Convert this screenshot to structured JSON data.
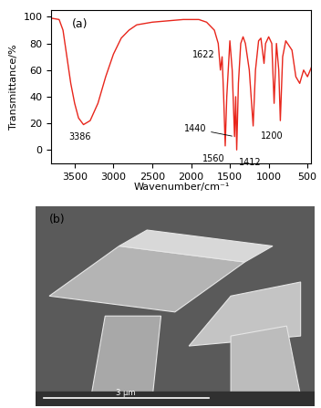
{
  "chart_data": [
    {
      "type": "line",
      "label": "(a)",
      "x_label": "Wavenumber/cm⁻¹",
      "y_label": "Transmittance/%",
      "color": "#e8261c",
      "xlim": [
        3800,
        450
      ],
      "xticks": [
        3500,
        3000,
        2500,
        2000,
        1500,
        1000,
        500
      ],
      "ylim": [
        -10,
        105
      ],
      "yticks": [
        0,
        20,
        40,
        60,
        80,
        100
      ],
      "x": [
        3800,
        3700,
        3650,
        3600,
        3550,
        3500,
        3450,
        3386,
        3300,
        3200,
        3100,
        3000,
        2900,
        2800,
        2700,
        2500,
        2300,
        2100,
        1900,
        1800,
        1700,
        1650,
        1622,
        1600,
        1580,
        1560,
        1540,
        1500,
        1470,
        1440,
        1425,
        1412,
        1390,
        1360,
        1330,
        1300,
        1250,
        1200,
        1170,
        1130,
        1100,
        1060,
        1040,
        1000,
        960,
        930,
        900,
        870,
        850,
        820,
        780,
        700,
        650,
        600,
        550,
        500,
        450
      ],
      "values": [
        99,
        98,
        90,
        70,
        50,
        35,
        24,
        19,
        22,
        35,
        55,
        72,
        84,
        90,
        94,
        96,
        97,
        98,
        98,
        96,
        90,
        80,
        60,
        70,
        40,
        3,
        40,
        82,
        60,
        10,
        40,
        0,
        50,
        80,
        85,
        80,
        60,
        18,
        60,
        82,
        84,
        65,
        80,
        85,
        80,
        35,
        80,
        60,
        22,
        70,
        82,
        75,
        55,
        50,
        60,
        55,
        62
      ],
      "annotations": [
        {
          "text": "3386",
          "x": 3386,
          "y": 19
        },
        {
          "text": "1622",
          "x": 1622,
          "y": 60
        },
        {
          "text": "1440",
          "x": 1440,
          "y": 10
        },
        {
          "text": "1560",
          "x": 1560,
          "y": 3
        },
        {
          "text": "1412",
          "x": 1412,
          "y": 0
        },
        {
          "text": "1200",
          "x": 1200,
          "y": 18
        }
      ]
    },
    {
      "type": "image",
      "label": "(b)",
      "scale_bar": "3 μm"
    }
  ]
}
